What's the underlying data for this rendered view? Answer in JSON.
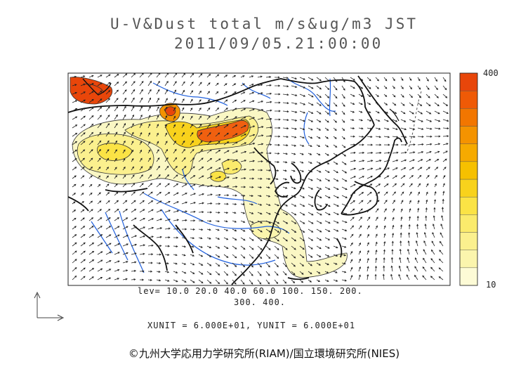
{
  "figure": {
    "title": "U-V&Dust total m/s&ug/m3 JST",
    "datetime": "2011/09/05.21:00:00",
    "levels_text_line1": "lev= 10.0 20.0 40.0 60.0 100. 150. 200.",
    "levels_text_line2": "300. 400.",
    "units_text": "XUNIT = 6.000E+01, YUNIT = 6.000E+01",
    "copyright": "©九州大学応用力学研究所(RIAM)/国立環境研究所(NIES)"
  },
  "colorbar": {
    "max_label": "400",
    "min_label": "10",
    "levels": [
      10,
      20,
      40,
      60,
      100,
      150,
      200,
      300,
      400
    ],
    "colors": [
      "#fdfbd6",
      "#fbf5ad",
      "#fbf08e",
      "#fbeb6c",
      "#fbe345",
      "#f8d21c",
      "#f6c000",
      "#f6aa00",
      "#f49300",
      "#f27600",
      "#ef5a06",
      "#e8460a"
    ]
  },
  "colors": {
    "coast": "#111111",
    "rivers": "#1f5fdc",
    "wind_arrows": "#222222",
    "dust_low": "#faf7c4",
    "dust_high": "#f06010"
  }
}
